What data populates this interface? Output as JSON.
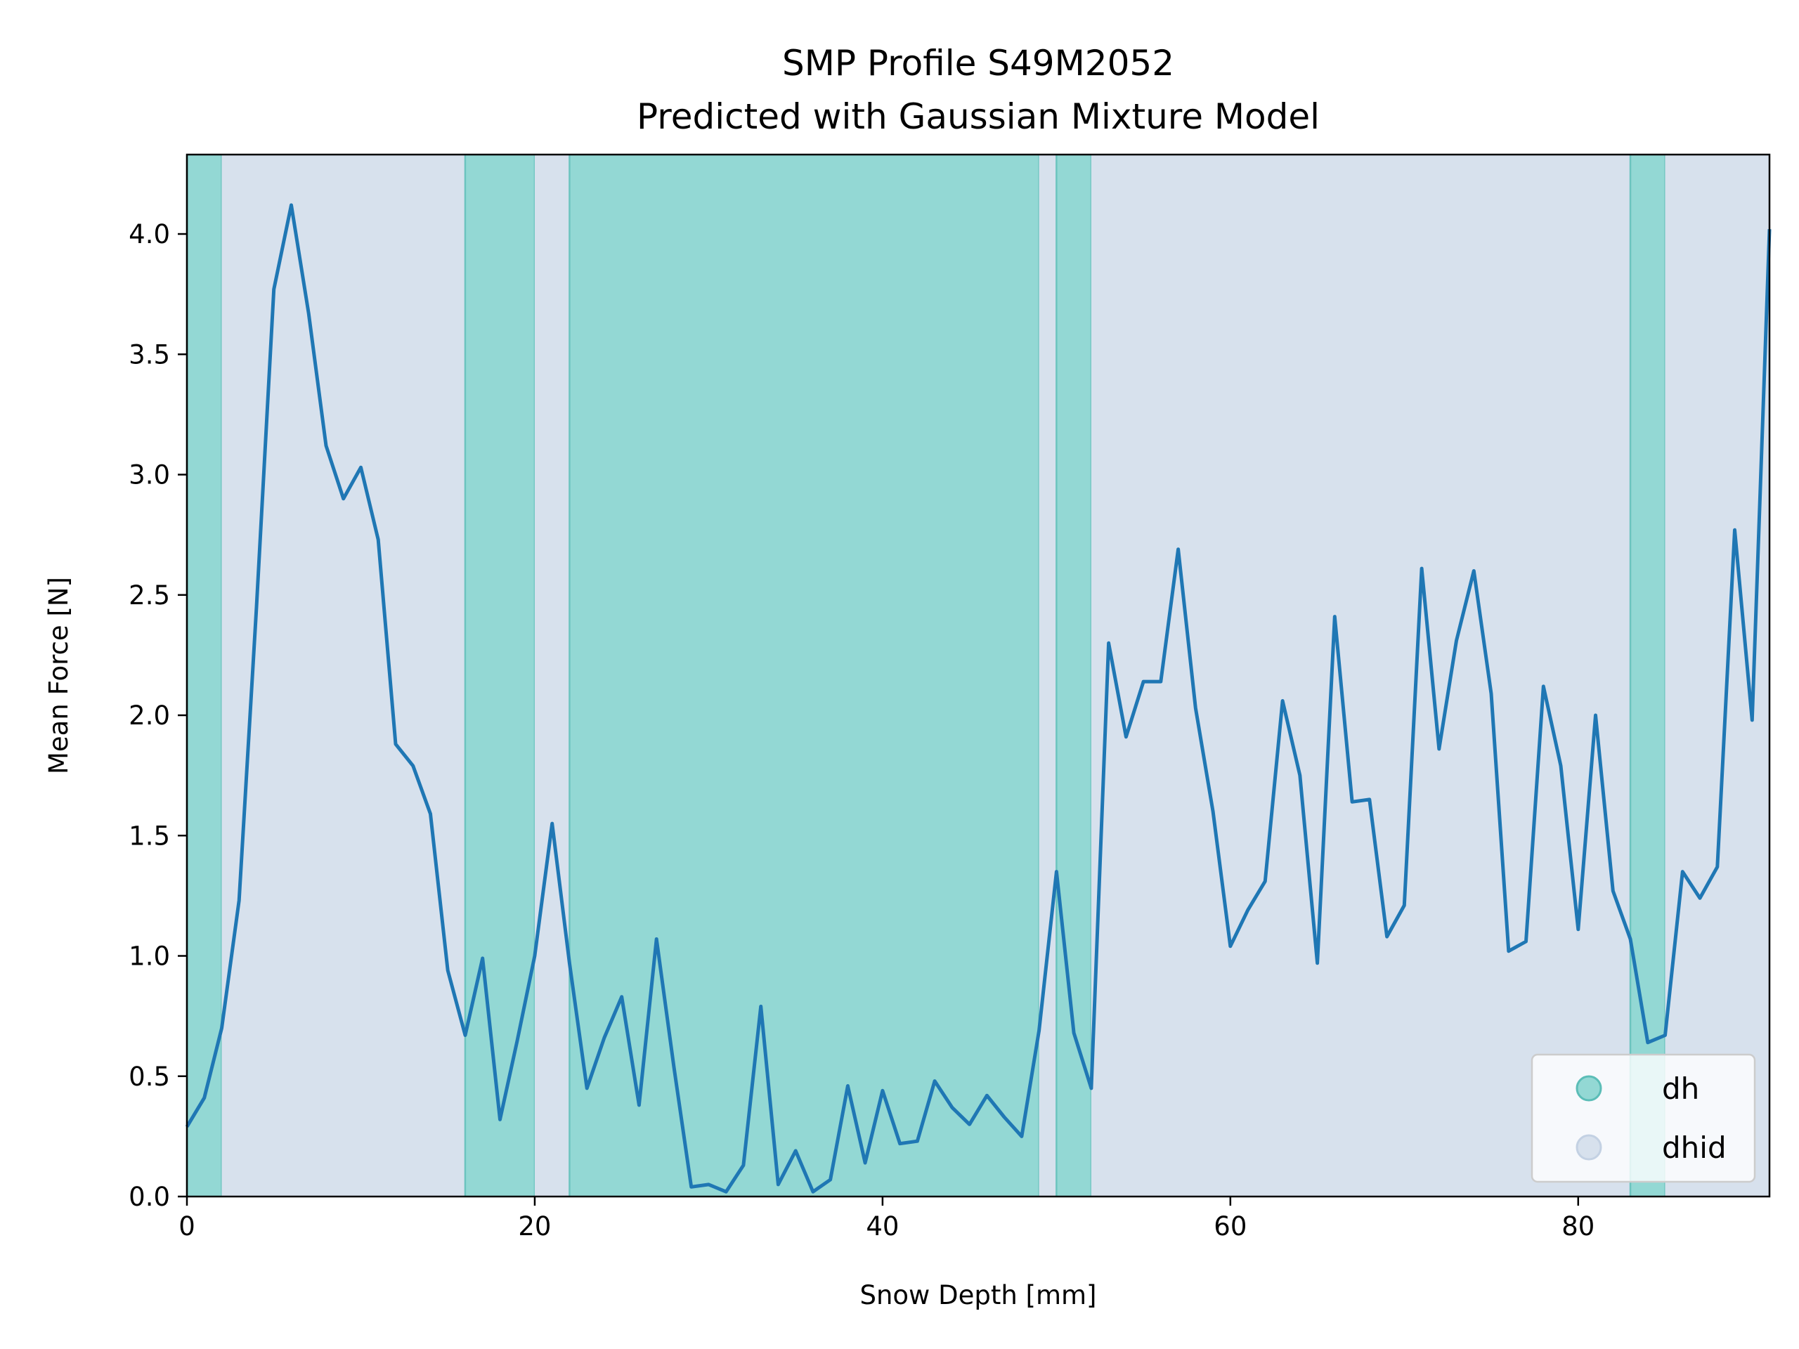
{
  "chart_data": {
    "type": "line",
    "title": "SMP Profile S49M2052",
    "subtitle": "Predicted with Gaussian Mixture Model",
    "xlabel": "Snow Depth [mm]",
    "ylabel": "Mean Force [N]",
    "xlim": [
      0,
      91
    ],
    "ylim": [
      0,
      4.33
    ],
    "grid": false,
    "x_ticks": [
      0,
      20,
      40,
      60,
      80
    ],
    "x_tick_labels": [
      "0",
      "20",
      "40",
      "60",
      "80"
    ],
    "y_ticks": [
      0,
      0.5,
      1.0,
      1.5,
      2.0,
      2.5,
      3.0,
      3.5,
      4.0
    ],
    "y_tick_labels": [
      "0.0",
      "0.5",
      "1.0",
      "1.5",
      "2.0",
      "2.5",
      "3.0",
      "3.5",
      "4.0"
    ],
    "line_color": "#1f77b4",
    "series": [
      {
        "x": [
          0,
          1,
          2,
          3,
          4,
          5,
          6,
          7,
          8,
          9,
          10,
          11,
          12,
          13,
          14,
          15,
          16,
          17,
          18,
          19,
          20,
          21,
          22,
          23,
          24,
          25,
          26,
          27,
          28,
          29,
          30,
          31,
          32,
          33,
          34,
          35,
          36,
          37,
          38,
          39,
          40,
          41,
          42,
          43,
          44,
          45,
          46,
          47,
          48,
          49,
          50,
          51,
          52,
          53,
          54,
          55,
          56,
          57,
          58,
          59,
          60,
          61,
          62,
          63,
          64,
          65,
          66,
          67,
          68,
          69,
          70,
          71,
          72,
          73,
          74,
          75,
          76,
          77,
          78,
          79,
          80,
          81,
          82,
          83,
          84,
          85,
          86,
          87,
          88,
          89,
          90,
          91
        ],
        "values": [
          0.29,
          0.41,
          0.7,
          1.23,
          2.45,
          3.77,
          4.12,
          3.67,
          3.12,
          2.9,
          3.03,
          2.73,
          1.88,
          1.79,
          1.59,
          0.94,
          0.67,
          0.99,
          0.32,
          0.65,
          1.0,
          1.55,
          0.97,
          0.45,
          0.66,
          0.83,
          0.38,
          1.07,
          0.54,
          0.04,
          0.05,
          0.02,
          0.13,
          0.79,
          0.05,
          0.19,
          0.02,
          0.07,
          0.46,
          0.14,
          0.44,
          0.22,
          0.23,
          0.48,
          0.37,
          0.3,
          0.42,
          0.33,
          0.25,
          0.69,
          1.35,
          0.68,
          0.45,
          2.3,
          1.91,
          2.14,
          2.14,
          2.69,
          2.03,
          1.6,
          1.04,
          1.19,
          1.31,
          2.06,
          1.75,
          0.97,
          2.41,
          1.64,
          1.65,
          1.08,
          1.21,
          2.61,
          1.86,
          2.31,
          2.6,
          2.09,
          1.02,
          1.06,
          2.12,
          1.79,
          1.11,
          2.0,
          1.27,
          1.07,
          0.64,
          0.67,
          1.35,
          1.24,
          1.37,
          2.77,
          1.98,
          4.02
        ]
      }
    ],
    "regions": [
      {
        "from": 0,
        "to": 2,
        "class": "dh"
      },
      {
        "from": 2,
        "to": 16,
        "class": "dhid"
      },
      {
        "from": 16,
        "to": 20,
        "class": "dh"
      },
      {
        "from": 20,
        "to": 22,
        "class": "dhid"
      },
      {
        "from": 22,
        "to": 49,
        "class": "dh"
      },
      {
        "from": 49,
        "to": 50,
        "class": "dhid"
      },
      {
        "from": 50,
        "to": 52,
        "class": "dh"
      },
      {
        "from": 52,
        "to": 83,
        "class": "dhid"
      },
      {
        "from": 83,
        "to": 85,
        "class": "dh"
      },
      {
        "from": 85,
        "to": 91,
        "class": "dhid"
      }
    ],
    "legend": {
      "position": "lower-right",
      "entries": [
        {
          "label": "dh",
          "color": "#93d8d4"
        },
        {
          "label": "dhid",
          "color": "#d7e1ed"
        }
      ]
    },
    "class_colors": {
      "dh": "#93d8d4",
      "dhid": "#d7e1ed"
    }
  }
}
